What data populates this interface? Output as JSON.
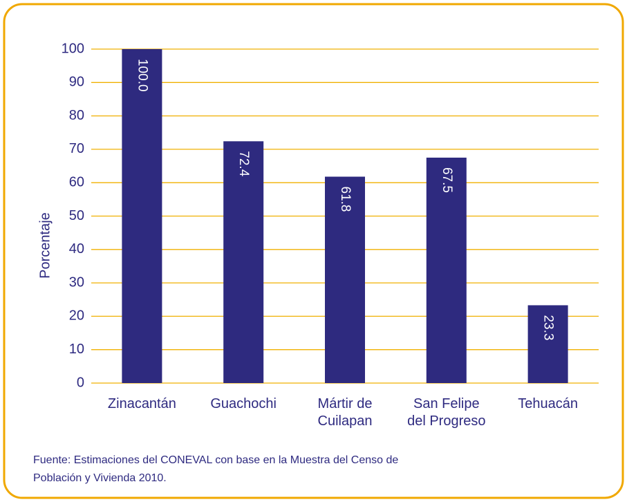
{
  "chart_data": {
    "type": "bar",
    "y_label": "Porcentaje",
    "categories": [
      "Zinacantán",
      "Guachochi",
      "Mártir de\nCuilapan",
      "San Felipe\ndel Progreso",
      "Tehuacán"
    ],
    "values": [
      100.0,
      72.4,
      61.8,
      67.5,
      23.3
    ],
    "value_labels": [
      "100.0",
      "72.4",
      "61.8",
      "67.5",
      "23.3"
    ],
    "color": "#2e2a7f",
    "ylim": [
      0,
      100
    ],
    "yticks": [
      0,
      10,
      20,
      30,
      40,
      50,
      60,
      70,
      80,
      90,
      100
    ],
    "grid": true,
    "source": [
      "Fuente: Estimaciones del CONEVAL con base en la Muestra del Censo de",
      "Población y Vivienda 2010."
    ]
  }
}
